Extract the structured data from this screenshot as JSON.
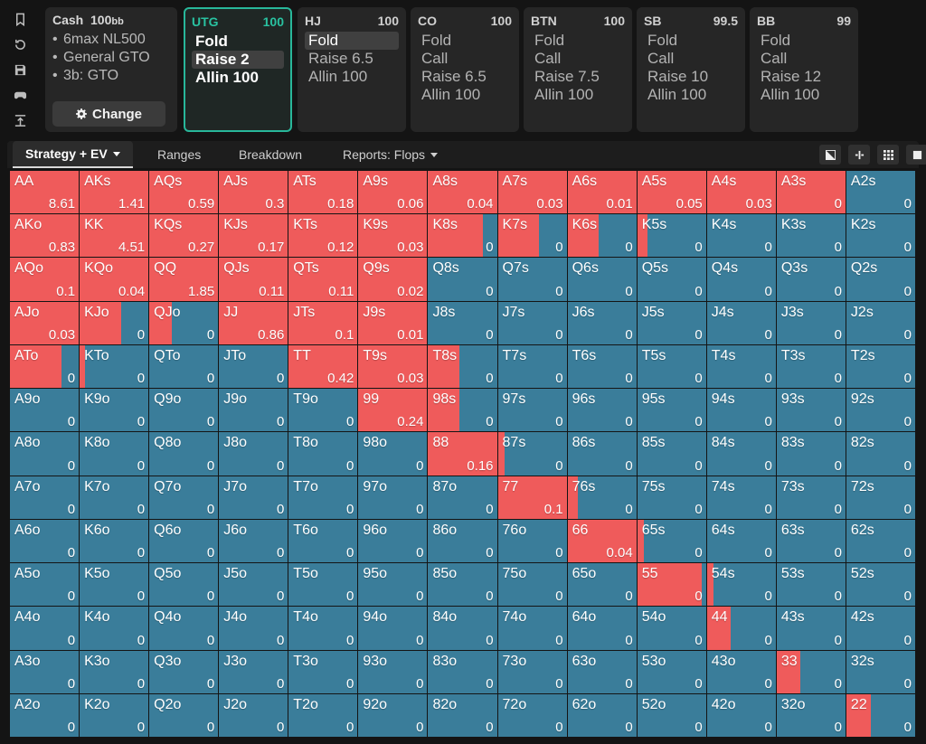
{
  "rail": {
    "icons": [
      "bookmark-icon",
      "history-icon",
      "save-icon",
      "gamepad-icon",
      "upload-icon"
    ]
  },
  "info": {
    "title": "Cash",
    "stack": "100",
    "stack_unit": "bb",
    "items": [
      "6max NL500",
      "General GTO",
      "3b: GTO"
    ],
    "change_label": "Change"
  },
  "positions": [
    {
      "name": "UTG",
      "stack": "100",
      "actions": [
        "Fold",
        "Raise 2",
        "Allin 100"
      ],
      "selected": 1,
      "active": true
    },
    {
      "name": "HJ",
      "stack": "100",
      "actions": [
        "Fold",
        "Raise 6.5",
        "Allin 100"
      ],
      "selected": 0,
      "active": false
    },
    {
      "name": "CO",
      "stack": "100",
      "actions": [
        "Fold",
        "Call",
        "Raise 6.5",
        "Allin 100"
      ],
      "selected": -1,
      "active": false
    },
    {
      "name": "BTN",
      "stack": "100",
      "actions": [
        "Fold",
        "Call",
        "Raise 7.5",
        "Allin 100"
      ],
      "selected": -1,
      "active": false
    },
    {
      "name": "SB",
      "stack": "99.5",
      "actions": [
        "Fold",
        "Call",
        "Raise 10",
        "Allin 100"
      ],
      "selected": -1,
      "active": false
    },
    {
      "name": "BB",
      "stack": "99",
      "actions": [
        "Fold",
        "Call",
        "Raise 12",
        "Allin 100"
      ],
      "selected": -1,
      "active": false
    }
  ],
  "tabs": [
    "Strategy + EV",
    "Ranges",
    "Breakdown",
    "Reports: Flops"
  ],
  "colors": {
    "raise": "#ef5b5b",
    "fold": "#3a7d9a",
    "accent": "#28b79a"
  },
  "grid": {
    "cells": [
      [
        [
          "AA",
          1,
          "8.61"
        ],
        [
          "AKs",
          1,
          "1.41"
        ],
        [
          "AQs",
          1,
          "0.59"
        ],
        [
          "AJs",
          1,
          "0.3"
        ],
        [
          "ATs",
          1,
          "0.18"
        ],
        [
          "A9s",
          1,
          "0.06"
        ],
        [
          "A8s",
          1,
          "0.04"
        ],
        [
          "A7s",
          1,
          "0.03"
        ],
        [
          "A6s",
          1,
          "0.01"
        ],
        [
          "A5s",
          1,
          "0.05"
        ],
        [
          "A4s",
          1,
          "0.03"
        ],
        [
          "A3s",
          1,
          "0"
        ],
        [
          "A2s",
          0,
          "0"
        ]
      ],
      [
        [
          "AKo",
          1,
          "0.83"
        ],
        [
          "KK",
          1,
          "4.51"
        ],
        [
          "KQs",
          1,
          "0.27"
        ],
        [
          "KJs",
          1,
          "0.17"
        ],
        [
          "KTs",
          1,
          "0.12"
        ],
        [
          "K9s",
          1,
          "0.03"
        ],
        [
          "K8s",
          0.8,
          "0"
        ],
        [
          "K7s",
          0.6,
          "0"
        ],
        [
          "K6s",
          0.45,
          "0"
        ],
        [
          "K5s",
          0.15,
          "0"
        ],
        [
          "K4s",
          0,
          "0"
        ],
        [
          "K3s",
          0,
          "0"
        ],
        [
          "K2s",
          0,
          "0"
        ]
      ],
      [
        [
          "AQo",
          1,
          "0.1"
        ],
        [
          "KQo",
          1,
          "0.04"
        ],
        [
          "QQ",
          1,
          "1.85"
        ],
        [
          "QJs",
          1,
          "0.11"
        ],
        [
          "QTs",
          1,
          "0.11"
        ],
        [
          "Q9s",
          1,
          "0.02"
        ],
        [
          "Q8s",
          0,
          "0"
        ],
        [
          "Q7s",
          0,
          "0"
        ],
        [
          "Q6s",
          0,
          "0"
        ],
        [
          "Q5s",
          0,
          "0"
        ],
        [
          "Q4s",
          0,
          "0"
        ],
        [
          "Q3s",
          0,
          "0"
        ],
        [
          "Q2s",
          0,
          "0"
        ]
      ],
      [
        [
          "AJo",
          1,
          "0.03"
        ],
        [
          "KJo",
          0.6,
          "0"
        ],
        [
          "QJo",
          0.33,
          "0"
        ],
        [
          "JJ",
          1,
          "0.86"
        ],
        [
          "JTs",
          1,
          "0.1"
        ],
        [
          "J9s",
          1,
          "0.01"
        ],
        [
          "J8s",
          0,
          "0"
        ],
        [
          "J7s",
          0,
          "0"
        ],
        [
          "J6s",
          0,
          "0"
        ],
        [
          "J5s",
          0,
          "0"
        ],
        [
          "J4s",
          0,
          "0"
        ],
        [
          "J3s",
          0,
          "0"
        ],
        [
          "J2s",
          0,
          "0"
        ]
      ],
      [
        [
          "ATo",
          0.75,
          "0"
        ],
        [
          "KTo",
          0.08,
          "0"
        ],
        [
          "QTo",
          0,
          "0"
        ],
        [
          "JTo",
          0,
          "0"
        ],
        [
          "TT",
          1,
          "0.42"
        ],
        [
          "T9s",
          1,
          "0.03"
        ],
        [
          "T8s",
          0.45,
          "0"
        ],
        [
          "T7s",
          0,
          "0"
        ],
        [
          "T6s",
          0,
          "0"
        ],
        [
          "T5s",
          0,
          "0"
        ],
        [
          "T4s",
          0,
          "0"
        ],
        [
          "T3s",
          0,
          "0"
        ],
        [
          "T2s",
          0,
          "0"
        ]
      ],
      [
        [
          "A9o",
          0,
          "0"
        ],
        [
          "K9o",
          0,
          "0"
        ],
        [
          "Q9o",
          0,
          "0"
        ],
        [
          "J9o",
          0,
          "0"
        ],
        [
          "T9o",
          0,
          "0"
        ],
        [
          "99",
          1,
          "0.24"
        ],
        [
          "98s",
          0.45,
          "0"
        ],
        [
          "97s",
          0,
          "0"
        ],
        [
          "96s",
          0,
          "0"
        ],
        [
          "95s",
          0,
          "0"
        ],
        [
          "94s",
          0,
          "0"
        ],
        [
          "93s",
          0,
          "0"
        ],
        [
          "92s",
          0,
          "0"
        ]
      ],
      [
        [
          "A8o",
          0,
          "0"
        ],
        [
          "K8o",
          0,
          "0"
        ],
        [
          "Q8o",
          0,
          "0"
        ],
        [
          "J8o",
          0,
          "0"
        ],
        [
          "T8o",
          0,
          "0"
        ],
        [
          "98o",
          0,
          "0"
        ],
        [
          "88",
          1,
          "0.16"
        ],
        [
          "87s",
          0.1,
          "0"
        ],
        [
          "86s",
          0,
          "0"
        ],
        [
          "85s",
          0,
          "0"
        ],
        [
          "84s",
          0,
          "0"
        ],
        [
          "83s",
          0,
          "0"
        ],
        [
          "82s",
          0,
          "0"
        ]
      ],
      [
        [
          "A7o",
          0,
          "0"
        ],
        [
          "K7o",
          0,
          "0"
        ],
        [
          "Q7o",
          0,
          "0"
        ],
        [
          "J7o",
          0,
          "0"
        ],
        [
          "T7o",
          0,
          "0"
        ],
        [
          "97o",
          0,
          "0"
        ],
        [
          "87o",
          0,
          "0"
        ],
        [
          "77",
          1,
          "0.1"
        ],
        [
          "76s",
          0.15,
          "0"
        ],
        [
          "75s",
          0,
          "0"
        ],
        [
          "74s",
          0,
          "0"
        ],
        [
          "73s",
          0,
          "0"
        ],
        [
          "72s",
          0,
          "0"
        ]
      ],
      [
        [
          "A6o",
          0,
          "0"
        ],
        [
          "K6o",
          0,
          "0"
        ],
        [
          "Q6o",
          0,
          "0"
        ],
        [
          "J6o",
          0,
          "0"
        ],
        [
          "T6o",
          0,
          "0"
        ],
        [
          "96o",
          0,
          "0"
        ],
        [
          "86o",
          0,
          "0"
        ],
        [
          "76o",
          0,
          "0"
        ],
        [
          "66",
          1,
          "0.04"
        ],
        [
          "65s",
          0.1,
          "0"
        ],
        [
          "64s",
          0,
          "0"
        ],
        [
          "63s",
          0,
          "0"
        ],
        [
          "62s",
          0,
          "0"
        ]
      ],
      [
        [
          "A5o",
          0,
          "0"
        ],
        [
          "K5o",
          0,
          "0"
        ],
        [
          "Q5o",
          0,
          "0"
        ],
        [
          "J5o",
          0,
          "0"
        ],
        [
          "T5o",
          0,
          "0"
        ],
        [
          "95o",
          0,
          "0"
        ],
        [
          "85o",
          0,
          "0"
        ],
        [
          "75o",
          0,
          "0"
        ],
        [
          "65o",
          0,
          "0"
        ],
        [
          "55",
          0.94,
          "0"
        ],
        [
          "54s",
          0.1,
          "0"
        ],
        [
          "53s",
          0,
          "0"
        ],
        [
          "52s",
          0,
          "0"
        ]
      ],
      [
        [
          "A4o",
          0,
          "0"
        ],
        [
          "K4o",
          0,
          "0"
        ],
        [
          "Q4o",
          0,
          "0"
        ],
        [
          "J4o",
          0,
          "0"
        ],
        [
          "T4o",
          0,
          "0"
        ],
        [
          "94o",
          0,
          "0"
        ],
        [
          "84o",
          0,
          "0"
        ],
        [
          "74o",
          0,
          "0"
        ],
        [
          "64o",
          0,
          "0"
        ],
        [
          "54o",
          0,
          "0"
        ],
        [
          "44",
          0.35,
          "0"
        ],
        [
          "43s",
          0,
          "0"
        ],
        [
          "42s",
          0,
          "0"
        ]
      ],
      [
        [
          "A3o",
          0,
          "0"
        ],
        [
          "K3o",
          0,
          "0"
        ],
        [
          "Q3o",
          0,
          "0"
        ],
        [
          "J3o",
          0,
          "0"
        ],
        [
          "T3o",
          0,
          "0"
        ],
        [
          "93o",
          0,
          "0"
        ],
        [
          "83o",
          0,
          "0"
        ],
        [
          "73o",
          0,
          "0"
        ],
        [
          "63o",
          0,
          "0"
        ],
        [
          "53o",
          0,
          "0"
        ],
        [
          "43o",
          0,
          "0"
        ],
        [
          "33",
          0.35,
          "0"
        ],
        [
          "32s",
          0,
          "0"
        ]
      ],
      [
        [
          "A2o",
          0,
          "0"
        ],
        [
          "K2o",
          0,
          "0"
        ],
        [
          "Q2o",
          0,
          "0"
        ],
        [
          "J2o",
          0,
          "0"
        ],
        [
          "T2o",
          0,
          "0"
        ],
        [
          "92o",
          0,
          "0"
        ],
        [
          "82o",
          0,
          "0"
        ],
        [
          "72o",
          0,
          "0"
        ],
        [
          "62o",
          0,
          "0"
        ],
        [
          "52o",
          0,
          "0"
        ],
        [
          "42o",
          0,
          "0"
        ],
        [
          "32o",
          0,
          "0"
        ],
        [
          "22",
          0.35,
          "0"
        ]
      ]
    ]
  }
}
